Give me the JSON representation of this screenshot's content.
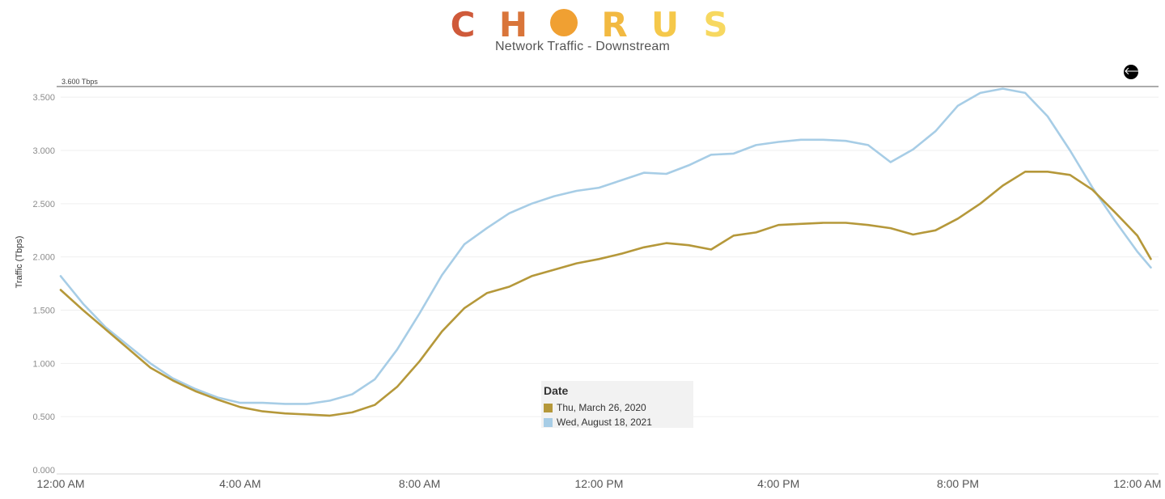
{
  "header": {
    "logo_letters": [
      "C",
      "H",
      "",
      "R",
      "U",
      "S"
    ],
    "logo_colors": [
      "#cf5a3a",
      "#d9753a",
      "#f0a032",
      "#f2b941",
      "#f5c84a",
      "#f7d860"
    ],
    "title": "Network Traffic - Downstream"
  },
  "controls": {
    "back_icon": "arrow-left-icon",
    "back_glyph": "🡐"
  },
  "chart_data": {
    "type": "line",
    "title": "Network Traffic - Downstream",
    "ylabel": "Traffic (Tbps)",
    "xlabel": "",
    "ylim": [
      0,
      3.6
    ],
    "xlim": [
      0,
      24.4
    ],
    "yticks": [
      0,
      0.5,
      1.0,
      1.5,
      2.0,
      2.5,
      3.0,
      3.5
    ],
    "ytick_labels": [
      "0.000",
      "0.500",
      "1.000",
      "1.500",
      "2.000",
      "2.500",
      "3.000",
      "3.500"
    ],
    "xticks": [
      0,
      4,
      8,
      12,
      16,
      20,
      24
    ],
    "xtick_labels": [
      "12:00 AM",
      "4:00 AM",
      "8:00 AM",
      "12:00 PM",
      "4:00 PM",
      "8:00 PM",
      "12:00 AM"
    ],
    "reference_line": {
      "value": 3.6,
      "label": "3.600 Tbps"
    },
    "grid": "horizontal",
    "legend": {
      "title": "Date",
      "placement": "bottom-center"
    },
    "series": [
      {
        "name": "Thu, March 26, 2020",
        "color": "#b5983a",
        "x": [
          0,
          0.5,
          1,
          1.5,
          2,
          2.5,
          3,
          3.5,
          4,
          4.5,
          5,
          5.5,
          6,
          6.5,
          7,
          7.5,
          8,
          8.5,
          9,
          9.5,
          10,
          10.5,
          11,
          11.5,
          12,
          12.5,
          13,
          13.5,
          14,
          14.5,
          15,
          15.5,
          16,
          16.5,
          17,
          17.5,
          18,
          18.5,
          19,
          19.5,
          20,
          20.5,
          21,
          21.5,
          22,
          22.5,
          23,
          23.5,
          24,
          24.3
        ],
        "values": [
          1.69,
          1.5,
          1.32,
          1.14,
          0.96,
          0.84,
          0.74,
          0.66,
          0.59,
          0.55,
          0.53,
          0.52,
          0.51,
          0.54,
          0.61,
          0.78,
          1.02,
          1.3,
          1.52,
          1.66,
          1.72,
          1.82,
          1.88,
          1.94,
          1.98,
          2.03,
          2.09,
          2.13,
          2.11,
          2.07,
          2.2,
          2.23,
          2.3,
          2.31,
          2.32,
          2.32,
          2.3,
          2.27,
          2.21,
          2.25,
          2.36,
          2.5,
          2.67,
          2.8,
          2.8,
          2.77,
          2.63,
          2.42,
          2.2,
          1.98
        ]
      },
      {
        "name": "Wed, August 18, 2021",
        "color": "#a7cde6",
        "x": [
          0,
          0.5,
          1,
          1.5,
          2,
          2.5,
          3,
          3.5,
          4,
          4.5,
          5,
          5.5,
          6,
          6.5,
          7,
          7.5,
          8,
          8.5,
          9,
          9.5,
          10,
          10.5,
          11,
          11.5,
          12,
          12.5,
          13,
          13.5,
          14,
          14.5,
          15,
          15.5,
          16,
          16.5,
          17,
          17.5,
          18,
          18.5,
          19,
          19.5,
          20,
          20.5,
          21,
          21.5,
          22,
          22.5,
          23,
          23.5,
          24,
          24.3
        ],
        "values": [
          1.82,
          1.56,
          1.34,
          1.17,
          1.0,
          0.86,
          0.76,
          0.68,
          0.63,
          0.63,
          0.62,
          0.62,
          0.65,
          0.71,
          0.85,
          1.13,
          1.47,
          1.83,
          2.12,
          2.27,
          2.41,
          2.5,
          2.57,
          2.62,
          2.65,
          2.72,
          2.79,
          2.78,
          2.86,
          2.96,
          2.97,
          3.05,
          3.08,
          3.1,
          3.1,
          3.09,
          3.05,
          2.89,
          3.01,
          3.18,
          3.42,
          3.54,
          3.58,
          3.54,
          3.32,
          3.0,
          2.65,
          2.34,
          2.05,
          1.9
        ]
      }
    ]
  }
}
